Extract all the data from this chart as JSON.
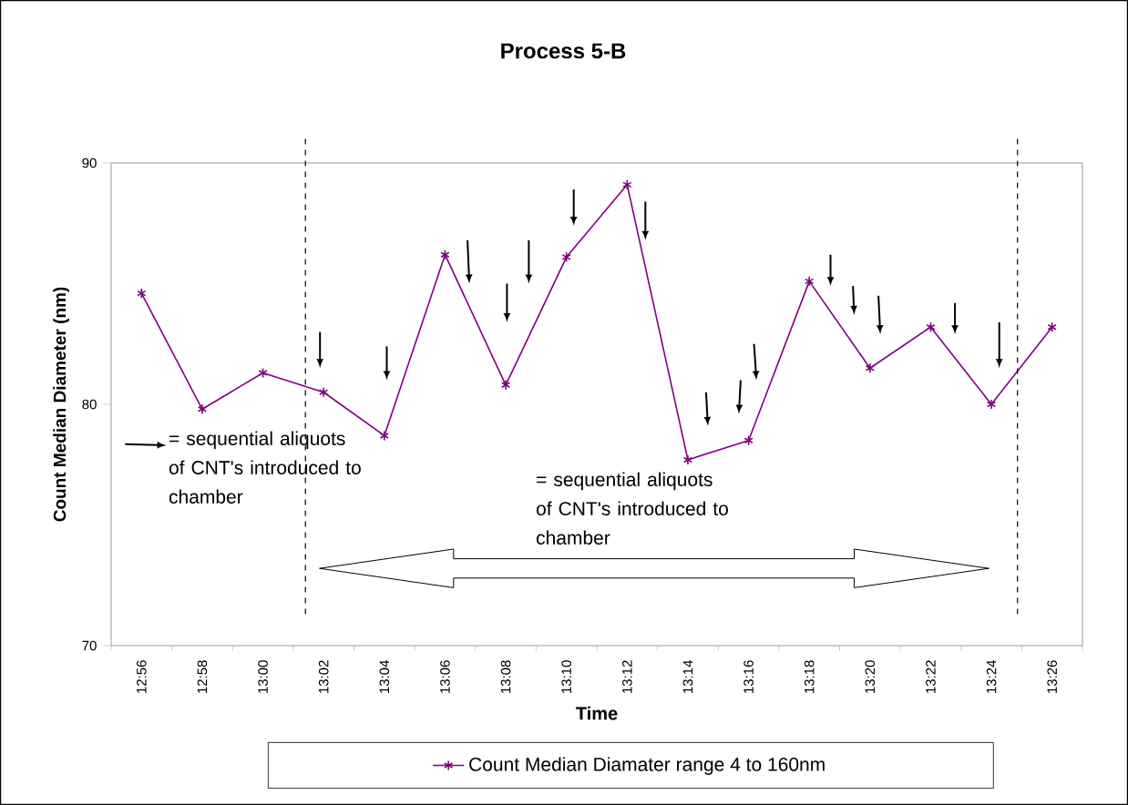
{
  "chart_data": {
    "type": "line",
    "title": "Process 5-B",
    "xlabel": "Time",
    "ylabel": "Count Median Diameter (nm)",
    "categories": [
      "12:56",
      "12:58",
      "13:00",
      "13:02",
      "13:04",
      "13:06",
      "13:08",
      "13:10",
      "13:12",
      "13:14",
      "13:16",
      "13:18",
      "13:20",
      "13:22",
      "13:24",
      "13:26"
    ],
    "series": [
      {
        "name": "Count Median Diamater range 4 to 160nm",
        "color": "#800080",
        "values": [
          84.6,
          79.8,
          81.3,
          80.5,
          78.7,
          86.2,
          80.8,
          86.1,
          89.1,
          77.7,
          78.5,
          85.1,
          81.5,
          83.2,
          80.0,
          83.2
        ]
      }
    ],
    "ylim": [
      70,
      90
    ],
    "yticks": [
      70,
      80,
      90
    ],
    "annotations": [
      "= sequential aliquots of CNT's introduced to chamber",
      "= sequential aliquots of CNT's introduced to chamber"
    ],
    "legend": "bottom",
    "marker": "cross",
    "line_style": "solid",
    "grid": false
  }
}
